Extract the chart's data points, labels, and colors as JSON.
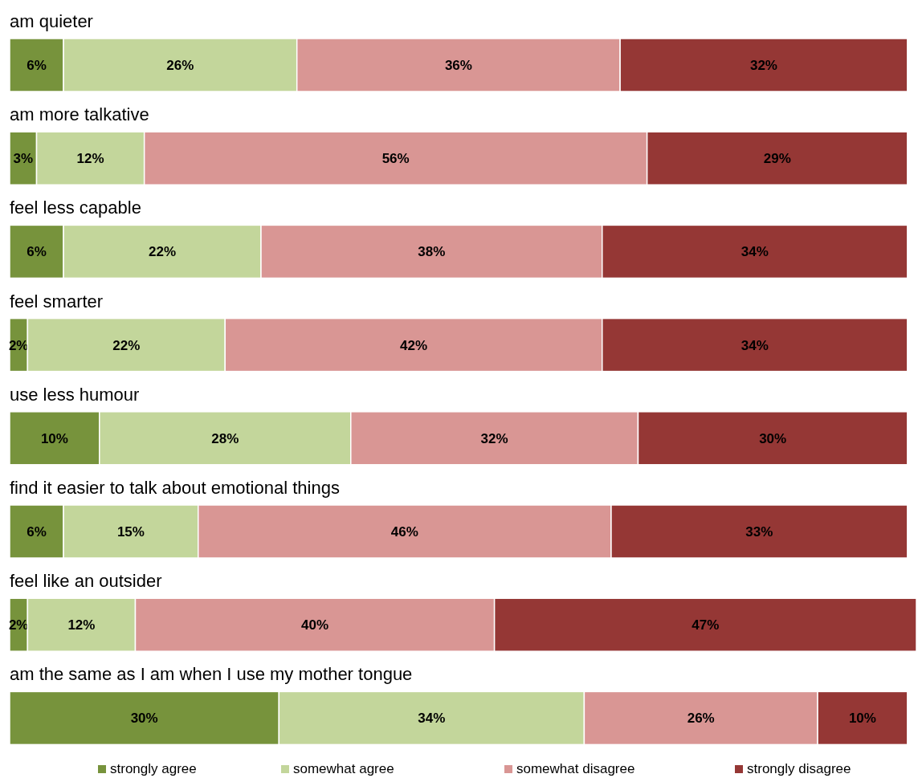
{
  "chart_data": {
    "type": "bar",
    "orientation": "horizontal",
    "stacked": true,
    "legend": "bottom",
    "categories": [
      "am quieter",
      "am more talkative",
      "feel less capable",
      "feel smarter",
      "use less humour",
      "find it easier to talk about emotional things",
      "feel like an outsider",
      "am the same as I am when I use my mother tongue"
    ],
    "series": [
      {
        "name": "strongly agree",
        "color": "#77933c",
        "values": [
          6,
          3,
          6,
          2,
          10,
          6,
          2,
          30
        ],
        "value_labels": [
          "6%",
          "3%",
          "6%",
          "2%",
          "10%",
          "6%",
          "2%",
          "30%"
        ]
      },
      {
        "name": "somewhat agree",
        "color": "#c3d69b",
        "values": [
          26,
          12,
          22,
          22,
          28,
          15,
          12,
          34
        ],
        "value_labels": [
          "26%",
          "12%",
          "22%",
          "22%",
          "28%",
          "15%",
          "12%",
          "34%"
        ]
      },
      {
        "name": "somewhat disagree",
        "color": "#d99694",
        "values": [
          36,
          56,
          38,
          42,
          32,
          46,
          40,
          26
        ],
        "value_labels": [
          "36%",
          "56%",
          "38%",
          "42%",
          "32%",
          "46%",
          "40%",
          "26%"
        ]
      },
      {
        "name": "strongly disagree",
        "color": "#953735",
        "values": [
          32,
          29,
          34,
          34,
          30,
          33,
          47,
          10
        ],
        "value_labels": [
          "32%",
          "29%",
          "34%",
          "34%",
          "30%",
          "33%",
          "47%",
          "10%"
        ]
      }
    ]
  }
}
